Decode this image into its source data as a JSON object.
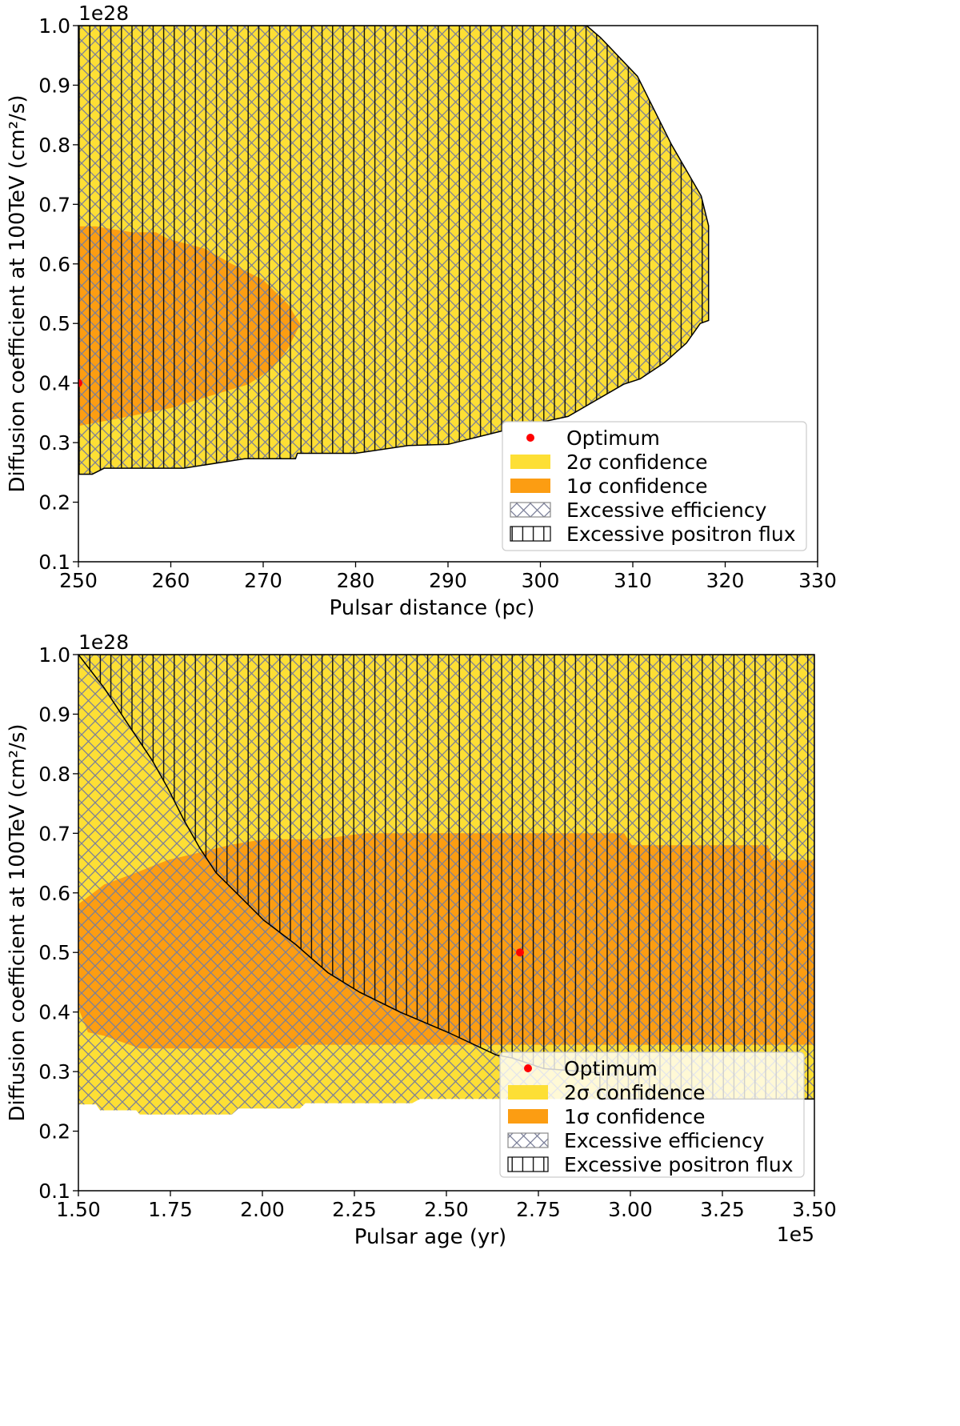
{
  "colors": {
    "sigma2": "#fddf35",
    "sigma1": "#fc9d12",
    "optimum": "#ff0000",
    "efficiency_hatch": "#7b7f99",
    "flux_hatch": "#000000"
  },
  "chart_data": [
    {
      "type": "area",
      "title": "",
      "xlabel": "Pulsar distance (pc)",
      "ylabel": "Diffusion coefficient at 100TeV (cm²/s)",
      "x_offset": "",
      "y_offset": "1e28",
      "xlim": [
        250,
        330
      ],
      "ylim": [
        0.1,
        1.0
      ],
      "xticks": [
        250,
        260,
        270,
        280,
        290,
        300,
        310,
        320,
        330
      ],
      "xtick_labels": [
        "250",
        "260",
        "270",
        "280",
        "290",
        "300",
        "310",
        "320",
        "330"
      ],
      "yticks": [
        0.1,
        0.2,
        0.3,
        0.4,
        0.5,
        0.6,
        0.7,
        0.8,
        0.9,
        1.0
      ],
      "ytick_labels": [
        "0.1",
        "0.2",
        "0.3",
        "0.4",
        "0.5",
        "0.6",
        "0.7",
        "0.8",
        "0.9",
        "1.0"
      ],
      "regions": {
        "sigma2": [
          [
            250,
            1.0
          ],
          [
            305,
            1.0
          ],
          [
            306.5,
            0.98
          ],
          [
            310.5,
            0.915
          ],
          [
            314.2,
            0.8
          ],
          [
            317.4,
            0.714
          ],
          [
            318.2,
            0.664
          ],
          [
            318.2,
            0.505
          ],
          [
            317.3,
            0.5
          ],
          [
            315.8,
            0.467
          ],
          [
            313.4,
            0.434
          ],
          [
            310.8,
            0.407
          ],
          [
            309,
            0.398
          ],
          [
            303,
            0.344
          ],
          [
            297,
            0.324
          ],
          [
            290,
            0.297
          ],
          [
            285.7,
            0.295
          ],
          [
            280,
            0.282
          ],
          [
            273.7,
            0.282
          ],
          [
            273.5,
            0.273
          ],
          [
            268,
            0.273
          ],
          [
            261.4,
            0.257
          ],
          [
            252.8,
            0.257
          ],
          [
            251.5,
            0.247
          ],
          [
            250,
            0.247
          ]
        ],
        "sigma1": [
          [
            250,
            0.663
          ],
          [
            251.9,
            0.663
          ],
          [
            255.8,
            0.653
          ],
          [
            258.4,
            0.653
          ],
          [
            259.7,
            0.642
          ],
          [
            263.6,
            0.626
          ],
          [
            266.6,
            0.6
          ],
          [
            270,
            0.573
          ],
          [
            272.7,
            0.532
          ],
          [
            274,
            0.499
          ],
          [
            272.7,
            0.458
          ],
          [
            271,
            0.425
          ],
          [
            268.4,
            0.398
          ],
          [
            265,
            0.382
          ],
          [
            260,
            0.358
          ],
          [
            254.5,
            0.341
          ],
          [
            250,
            0.328
          ]
        ],
        "excessive_efficiency": [
          [
            250,
            1.0
          ],
          [
            305,
            1.0
          ],
          [
            306.5,
            0.98
          ],
          [
            310.5,
            0.915
          ],
          [
            314.2,
            0.8
          ],
          [
            317.4,
            0.714
          ],
          [
            318.2,
            0.664
          ],
          [
            318.2,
            0.505
          ],
          [
            317.3,
            0.5
          ],
          [
            315.8,
            0.467
          ],
          [
            313.4,
            0.434
          ],
          [
            310.8,
            0.407
          ],
          [
            309,
            0.398
          ],
          [
            303,
            0.344
          ],
          [
            297,
            0.324
          ],
          [
            290,
            0.297
          ],
          [
            285.7,
            0.295
          ],
          [
            280,
            0.282
          ],
          [
            273.7,
            0.282
          ],
          [
            273.5,
            0.273
          ],
          [
            268,
            0.273
          ],
          [
            261.4,
            0.257
          ],
          [
            252.8,
            0.257
          ],
          [
            251.5,
            0.247
          ],
          [
            250,
            0.247
          ]
        ],
        "excessive_positron_flux": [
          [
            250,
            1.0
          ],
          [
            305,
            1.0
          ],
          [
            306.5,
            0.98
          ],
          [
            310.5,
            0.915
          ],
          [
            314.2,
            0.8
          ],
          [
            317.4,
            0.714
          ],
          [
            318.2,
            0.664
          ],
          [
            318.2,
            0.505
          ],
          [
            317.3,
            0.5
          ],
          [
            315.8,
            0.467
          ],
          [
            313.4,
            0.434
          ],
          [
            310.8,
            0.407
          ],
          [
            309,
            0.398
          ],
          [
            303,
            0.344
          ],
          [
            297,
            0.324
          ],
          [
            290,
            0.297
          ],
          [
            285.7,
            0.295
          ],
          [
            280,
            0.282
          ],
          [
            273.7,
            0.282
          ],
          [
            273.5,
            0.273
          ],
          [
            268,
            0.273
          ],
          [
            261.4,
            0.257
          ],
          [
            252.8,
            0.257
          ],
          [
            251.5,
            0.247
          ],
          [
            250,
            0.247
          ]
        ]
      },
      "optimum": [
        250,
        0.4
      ],
      "legend": {
        "position": "lower-right",
        "entries": [
          "Optimum",
          "2σ confidence",
          "1σ confidence",
          "Excessive efficiency",
          "Excessive positron flux"
        ]
      }
    },
    {
      "type": "area",
      "title": "",
      "xlabel": "Pulsar age (yr)",
      "ylabel": "Diffusion coefficient at 100TeV (cm²/s)",
      "x_offset": "1e5",
      "y_offset": "1e28",
      "xlim": [
        1.5,
        3.5
      ],
      "ylim": [
        0.1,
        1.0
      ],
      "xticks": [
        1.5,
        1.75,
        2.0,
        2.25,
        2.5,
        2.75,
        3.0,
        3.25,
        3.5
      ],
      "xtick_labels": [
        "1.50",
        "1.75",
        "2.00",
        "2.25",
        "2.50",
        "2.75",
        "3.00",
        "3.25",
        "3.50"
      ],
      "yticks": [
        0.1,
        0.2,
        0.3,
        0.4,
        0.5,
        0.6,
        0.7,
        0.8,
        0.9,
        1.0
      ],
      "ytick_labels": [
        "0.1",
        "0.2",
        "0.3",
        "0.4",
        "0.5",
        "0.6",
        "0.7",
        "0.8",
        "0.9",
        "1.0"
      ],
      "regions": {
        "sigma2": [
          [
            1.5,
            1.0
          ],
          [
            3.5,
            1.0
          ],
          [
            3.5,
            0.254
          ],
          [
            2.428,
            0.254
          ],
          [
            2.407,
            0.247
          ],
          [
            2.117,
            0.247
          ],
          [
            2.102,
            0.238
          ],
          [
            1.935,
            0.238
          ],
          [
            1.917,
            0.228
          ],
          [
            1.667,
            0.228
          ],
          [
            1.657,
            0.235
          ],
          [
            1.559,
            0.235
          ],
          [
            1.548,
            0.245
          ],
          [
            1.5,
            0.245
          ]
        ],
        "sigma1": [
          [
            1.5,
            0.581
          ],
          [
            1.57,
            0.614
          ],
          [
            1.657,
            0.634
          ],
          [
            1.743,
            0.655
          ],
          [
            1.83,
            0.668
          ],
          [
            1.917,
            0.681
          ],
          [
            2.004,
            0.69
          ],
          [
            2.157,
            0.69
          ],
          [
            2.276,
            0.7
          ],
          [
            2.983,
            0.7
          ],
          [
            3.004,
            0.68
          ],
          [
            3.374,
            0.68
          ],
          [
            3.385,
            0.655
          ],
          [
            3.5,
            0.655
          ],
          [
            3.5,
            0.345
          ],
          [
            2.1,
            0.345
          ],
          [
            2.09,
            0.339
          ],
          [
            1.667,
            0.339
          ],
          [
            1.57,
            0.36
          ],
          [
            1.526,
            0.366
          ],
          [
            1.5,
            0.406
          ]
        ],
        "excessive_efficiency": [
          [
            1.5,
            1.0
          ],
          [
            3.5,
            1.0
          ],
          [
            3.5,
            0.254
          ],
          [
            2.428,
            0.254
          ],
          [
            2.407,
            0.247
          ],
          [
            2.117,
            0.247
          ],
          [
            2.102,
            0.238
          ],
          [
            1.935,
            0.238
          ],
          [
            1.917,
            0.228
          ],
          [
            1.667,
            0.228
          ],
          [
            1.657,
            0.235
          ],
          [
            1.559,
            0.235
          ],
          [
            1.548,
            0.245
          ],
          [
            1.5,
            0.245
          ]
        ],
        "excessive_positron_flux": [
          [
            1.5,
            1.0
          ],
          [
            3.5,
            1.0
          ],
          [
            3.5,
            0.254
          ],
          [
            2.917,
            0.254
          ],
          [
            2.917,
            0.298
          ],
          [
            2.765,
            0.305
          ],
          [
            2.678,
            0.323
          ],
          [
            2.635,
            0.328
          ],
          [
            2.504,
            0.366
          ],
          [
            2.374,
            0.4
          ],
          [
            2.265,
            0.433
          ],
          [
            2.178,
            0.466
          ],
          [
            2.091,
            0.513
          ],
          [
            2.004,
            0.554
          ],
          [
            1.939,
            0.594
          ],
          [
            1.874,
            0.634
          ],
          [
            1.83,
            0.675
          ],
          [
            1.787,
            0.722
          ],
          [
            1.743,
            0.776
          ],
          [
            1.7,
            0.823
          ],
          [
            1.635,
            0.883
          ],
          [
            1.57,
            0.944
          ]
        ]
      },
      "optimum": [
        2.7,
        0.5
      ],
      "legend": {
        "position": "lower-right",
        "entries": [
          "Optimum",
          "2σ confidence",
          "1σ confidence",
          "Excessive efficiency",
          "Excessive positron flux"
        ]
      }
    }
  ]
}
